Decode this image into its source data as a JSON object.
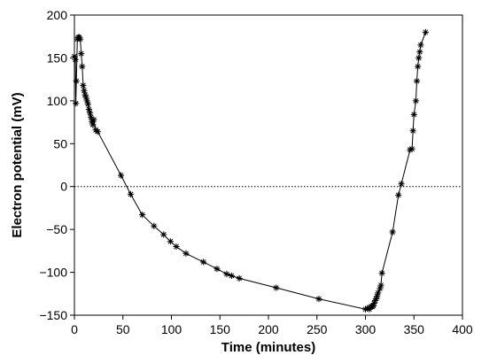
{
  "chart_data": {
    "type": "line",
    "title": "",
    "xlabel": "Time (minutes)",
    "ylabel": "Electron potential (mV)",
    "xlim": [
      0,
      400
    ],
    "ylim": [
      -150,
      200
    ],
    "x_ticks": [
      0,
      50,
      100,
      150,
      200,
      250,
      300,
      350,
      400
    ],
    "x_tick_labels": [
      "0",
      "50",
      "100",
      "150",
      "200",
      "250",
      "300",
      "350",
      "400"
    ],
    "y_ticks": [
      -150,
      -100,
      -50,
      0,
      50,
      100,
      150,
      200
    ],
    "y_tick_labels": [
      "−150",
      "−100",
      "−50",
      "0",
      "50",
      "100",
      "150",
      "200"
    ],
    "reference_line": {
      "y": 0,
      "style": "dotted"
    },
    "grid": false,
    "legend": "none",
    "marker": "asterisk",
    "colors": {
      "line": "#000000",
      "marker": "#000000",
      "axes": "#000000"
    },
    "series": [
      {
        "x": [
          0,
          1,
          1.5,
          2,
          3,
          4,
          5,
          6,
          7,
          8,
          9,
          10,
          11,
          12,
          13,
          14,
          15,
          16,
          17,
          18,
          19,
          20,
          22,
          24,
          48,
          58,
          70,
          82,
          92,
          99,
          105,
          115,
          133,
          147,
          157,
          162,
          170,
          208,
          252,
          300,
          302,
          304,
          305,
          306,
          307,
          308,
          309,
          310,
          311,
          312,
          313,
          315,
          316,
          317,
          328,
          334,
          337,
          346,
          348,
          349,
          350,
          352,
          353,
          354,
          355,
          356,
          357,
          362
        ],
        "y": [
          152,
          148,
          97,
          123,
          172,
          174,
          174,
          172,
          155,
          140,
          118,
          112,
          107,
          104,
          100,
          96,
          90,
          86,
          81,
          76,
          72,
          78,
          66,
          64,
          13,
          -9,
          -33,
          -46,
          -56,
          -64,
          -70,
          -78,
          -88,
          -96,
          -102,
          -104,
          -107,
          -118,
          -131,
          -143,
          -142,
          -143,
          -141,
          -140,
          -140,
          -139,
          -136,
          -133,
          -131,
          -128,
          -124,
          -119,
          -115,
          -101,
          -53,
          -10,
          3,
          43,
          44,
          65,
          84,
          100,
          123,
          140,
          150,
          157,
          165,
          180
        ]
      }
    ]
  }
}
